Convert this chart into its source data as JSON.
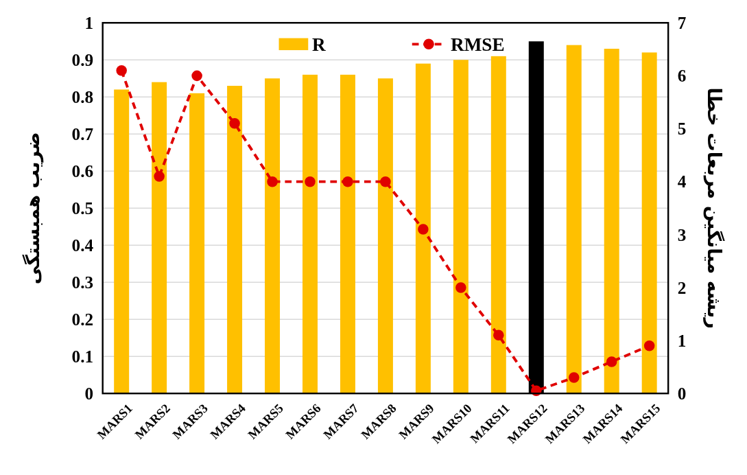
{
  "chart_data": {
    "type": "bar",
    "ylabel": "ضریب همبستگی",
    "y2label": "ریشه میانگین مربعات خطا",
    "categories": [
      "MARS1",
      "MARS2",
      "MARS3",
      "MARS4",
      "MARS5",
      "MARS6",
      "MARS7",
      "MARS8",
      "MARS9",
      "MARS10",
      "MARS11",
      "MARS12",
      "MARS13",
      "MARS14",
      "MARS15"
    ],
    "series": [
      {
        "name": "R",
        "color": "#ffc000",
        "colors": [
          "#ffc000",
          "#ffc000",
          "#ffc000",
          "#ffc000",
          "#ffc000",
          "#ffc000",
          "#ffc000",
          "#ffc000",
          "#ffc000",
          "#ffc000",
          "#ffc000",
          "#000000",
          "#ffc000",
          "#ffc000",
          "#ffc000"
        ],
        "values": [
          0.82,
          0.84,
          0.81,
          0.83,
          0.85,
          0.86,
          0.86,
          0.85,
          0.89,
          0.9,
          0.91,
          0.95,
          0.94,
          0.93,
          0.92
        ]
      },
      {
        "name": "RMSE",
        "type": "line",
        "axis": "y2",
        "color": "#e00000",
        "marker": "circle",
        "line_style": "dashed",
        "values": [
          6.1,
          4.1,
          6.0,
          5.1,
          4.0,
          4.0,
          4.0,
          4.0,
          3.1,
          2.0,
          1.1,
          0.05,
          0.3,
          0.6,
          0.9
        ]
      }
    ],
    "ylim": [
      0,
      1
    ],
    "yticks": [
      0,
      0.1,
      0.2,
      0.3,
      0.4,
      0.5,
      0.6,
      0.7,
      0.8,
      0.9,
      1
    ],
    "y2lim": [
      0,
      7
    ],
    "y2ticks": [
      0,
      1,
      2,
      3,
      4,
      5,
      6,
      7
    ],
    "grid": "y",
    "legend": "top"
  }
}
